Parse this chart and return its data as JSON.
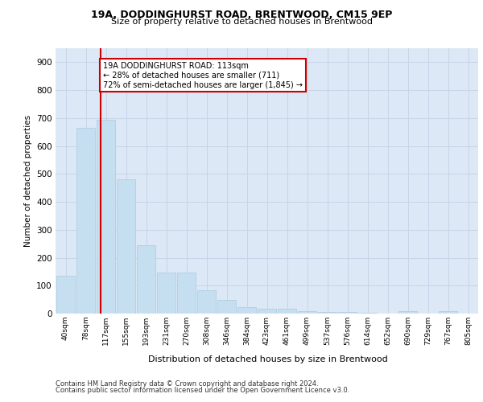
{
  "title1": "19A, DODDINGHURST ROAD, BRENTWOOD, CM15 9EP",
  "title2": "Size of property relative to detached houses in Brentwood",
  "xlabel": "Distribution of detached houses by size in Brentwood",
  "ylabel": "Number of detached properties",
  "bar_labels": [
    "40sqm",
    "78sqm",
    "117sqm",
    "155sqm",
    "193sqm",
    "231sqm",
    "270sqm",
    "308sqm",
    "346sqm",
    "384sqm",
    "423sqm",
    "461sqm",
    "499sqm",
    "537sqm",
    "576sqm",
    "614sqm",
    "652sqm",
    "690sqm",
    "729sqm",
    "767sqm",
    "805sqm"
  ],
  "bar_values": [
    135,
    665,
    695,
    480,
    245,
    147,
    147,
    83,
    48,
    22,
    17,
    17,
    9,
    5,
    5,
    2,
    0,
    8,
    0,
    8,
    0
  ],
  "bar_color": "#c5dff0",
  "bar_edgecolor": "#a8cce0",
  "annotation_text": "19A DODDINGHURST ROAD: 113sqm\n← 28% of detached houses are smaller (711)\n72% of semi-detached houses are larger (1,845) →",
  "annotation_box_color": "#ffffff",
  "annotation_box_edgecolor": "#cc0000",
  "vline_color": "#cc0000",
  "ylim": [
    0,
    950
  ],
  "yticks": [
    0,
    100,
    200,
    300,
    400,
    500,
    600,
    700,
    800,
    900
  ],
  "grid_color": "#c8d4e8",
  "background_color": "#dce8f5",
  "footer1": "Contains HM Land Registry data © Crown copyright and database right 2024.",
  "footer2": "Contains public sector information licensed under the Open Government Licence v3.0."
}
